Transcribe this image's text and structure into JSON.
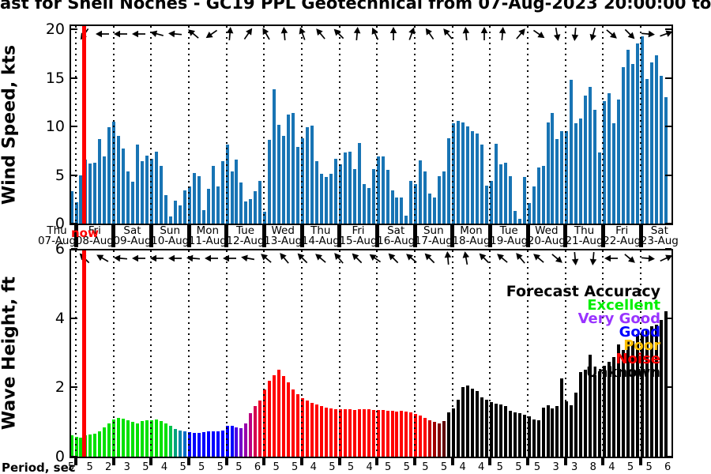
{
  "title": "ast for Shell Noches - GC19 PPL Geotechnical from 07-Aug-2023 20:00:00 to",
  "now_label": "now",
  "colors": {
    "wind_bar": "#1874B4",
    "now_line": "#FF0000",
    "axis": "#000000"
  },
  "legend": {
    "title": "Forecast Accuracy",
    "entries": [
      {
        "label": "Excellent",
        "color": "#00EE00"
      },
      {
        "label": "Very Good",
        "color": "#9933FF"
      },
      {
        "label": "Good",
        "color": "#0000FF"
      },
      {
        "label": "Poor",
        "color": "#FFC000"
      },
      {
        "label": "Noise",
        "color": "#FF0000"
      },
      {
        "label": "Unknown",
        "color": "#000000"
      }
    ]
  },
  "x_axis": {
    "days": [
      {
        "name": "Thu",
        "date": "07-Aug"
      },
      {
        "name": "Fri",
        "date": "08-Aug"
      },
      {
        "name": "Sat",
        "date": "09-Aug"
      },
      {
        "name": "Sun",
        "date": "10-Aug"
      },
      {
        "name": "Mon",
        "date": "11-Aug"
      },
      {
        "name": "Tue",
        "date": "12-Aug"
      },
      {
        "name": "Wed",
        "date": "13-Aug"
      },
      {
        "name": "Thu",
        "date": "14-Aug"
      },
      {
        "name": "Fri",
        "date": "15-Aug"
      },
      {
        "name": "Sat",
        "date": "16-Aug"
      },
      {
        "name": "Sun",
        "date": "17-Aug"
      },
      {
        "name": "Mon",
        "date": "18-Aug"
      },
      {
        "name": "Tue",
        "date": "19-Aug"
      },
      {
        "name": "Wed",
        "date": "20-Aug"
      },
      {
        "name": "Thu",
        "date": "21-Aug"
      },
      {
        "name": "Fri",
        "date": "22-Aug"
      },
      {
        "name": "Sat",
        "date": "23-Aug"
      }
    ]
  },
  "period_row": {
    "label": "Period, sec",
    "values": [
      "5",
      "5",
      "2",
      "3",
      "5",
      "4",
      "5",
      "5",
      "5",
      "5",
      "6",
      "5",
      "5",
      "4",
      "5",
      "5",
      "4",
      "5",
      "5",
      "5",
      "5",
      "4",
      "4",
      "5",
      "5",
      "5",
      "3",
      "3",
      "8",
      "4",
      "5",
      "5",
      "6"
    ]
  },
  "chart_data": [
    {
      "type": "bar",
      "name": "wind-speed",
      "ylabel": "Wind Speed, kts",
      "yticks": [
        "0",
        "5",
        "10",
        "15",
        "20"
      ],
      "ylim": [
        0,
        20.5
      ],
      "bar_color": "#1874B4",
      "values": [
        3.3,
        2.2,
        5.0,
        6.6,
        6.2,
        6.3,
        8.7,
        6.9,
        9.9,
        10.5,
        9.0,
        7.7,
        5.4,
        4.3,
        8.1,
        6.4,
        7.0,
        6.7,
        7.4,
        5.9,
        2.9,
        0.7,
        2.4,
        1.9,
        3.4,
        3.8,
        5.2,
        4.9,
        1.4,
        3.6,
        5.9,
        3.8,
        6.4,
        8.1,
        5.4,
        6.6,
        4.2,
        2.3,
        2.5,
        3.3,
        4.4,
        1.2,
        8.6,
        13.8,
        10.2,
        9.0,
        11.2,
        11.4,
        7.9,
        8.8,
        9.9,
        10.1,
        6.4,
        5.1,
        4.8,
        5.1,
        6.7,
        6.1,
        7.3,
        7.4,
        5.6,
        8.3,
        4.1,
        3.7,
        5.6,
        6.9,
        6.9,
        5.5,
        3.4,
        2.7,
        2.7,
        0.8,
        4.4,
        4.1,
        6.5,
        5.4,
        3.1,
        2.7,
        4.9,
        5.4,
        8.8,
        10.3,
        10.6,
        10.4,
        10.0,
        9.5,
        9.3,
        8.1,
        3.9,
        4.4,
        8.2,
        6.1,
        6.3,
        4.9,
        1.3,
        0.5,
        4.8,
        2.1,
        3.8,
        5.8,
        5.9,
        10.4,
        11.4,
        8.7,
        9.5,
        9.5,
        14.8,
        10.3,
        10.8,
        13.2,
        14.1,
        11.7,
        7.3,
        12.6,
        13.4,
        10.3,
        12.8,
        16.1,
        17.9,
        16.4,
        18.5,
        19.3,
        14.9,
        16.6,
        17.3,
        15.2,
        13.0
      ],
      "direction_arrows_deg": [
        235,
        180,
        180,
        180,
        165,
        175,
        140,
        215,
        85,
        55,
        120,
        95,
        110,
        130,
        135,
        85,
        115,
        90,
        70,
        125,
        130,
        95,
        90,
        85,
        50,
        325,
        280,
        265,
        255,
        320,
        315,
        355,
        20
      ]
    },
    {
      "type": "bar",
      "name": "wave-height",
      "ylabel": "Wave Height, ft",
      "yticks": [
        "0",
        "2",
        "4",
        "6"
      ],
      "ylim": [
        0,
        6
      ],
      "values": [
        0.62,
        0.58,
        0.56,
        0.62,
        0.65,
        0.66,
        0.72,
        0.85,
        0.95,
        1.08,
        1.12,
        1.1,
        1.05,
        1.0,
        0.96,
        1.02,
        1.05,
        1.06,
        1.08,
        1.02,
        0.95,
        0.88,
        0.8,
        0.76,
        0.72,
        0.7,
        0.68,
        0.68,
        0.71,
        0.73,
        0.72,
        0.73,
        0.75,
        0.88,
        0.9,
        0.85,
        0.82,
        0.95,
        1.25,
        1.45,
        1.62,
        1.95,
        2.2,
        2.35,
        2.5,
        2.32,
        2.15,
        1.95,
        1.8,
        1.7,
        1.62,
        1.56,
        1.5,
        1.46,
        1.42,
        1.4,
        1.38,
        1.36,
        1.38,
        1.36,
        1.35,
        1.36,
        1.38,
        1.37,
        1.35,
        1.34,
        1.35,
        1.33,
        1.32,
        1.3,
        1.32,
        1.3,
        1.28,
        1.24,
        1.18,
        1.12,
        1.05,
        1.0,
        0.96,
        1.02,
        1.28,
        1.4,
        1.65,
        2.0,
        2.06,
        1.97,
        1.9,
        1.72,
        1.64,
        1.57,
        1.54,
        1.51,
        1.46,
        1.32,
        1.29,
        1.26,
        1.21,
        1.16,
        1.08,
        1.04,
        1.42,
        1.49,
        1.4,
        1.46,
        2.25,
        1.59,
        1.49,
        1.86,
        2.45,
        2.5,
        2.95,
        2.35,
        2.47,
        2.62,
        2.73,
        2.88,
        3.23,
        3.08,
        3.38,
        3.34,
        3.53,
        3.61,
        3.68,
        3.76,
        3.8,
        3.95,
        4.2
      ],
      "color_segments": [
        {
          "count": 21,
          "color": "#00E100",
          "accuracy": "Excellent"
        },
        {
          "count": 1,
          "color": "#00C24E",
          "accuracy": "transition"
        },
        {
          "count": 1,
          "color": "#00A37C",
          "accuracy": "transition"
        },
        {
          "count": 1,
          "color": "#0086A6",
          "accuracy": "transition"
        },
        {
          "count": 1,
          "color": "#006BC8",
          "accuracy": "transition"
        },
        {
          "count": 10,
          "color": "#0000FF",
          "accuracy": "Good"
        },
        {
          "count": 1,
          "color": "#4B00E6",
          "accuracy": "transition"
        },
        {
          "count": 1,
          "color": "#7300C8",
          "accuracy": "Very Good"
        },
        {
          "count": 1,
          "color": "#9900AA",
          "accuracy": "transition"
        },
        {
          "count": 1,
          "color": "#BB0080",
          "accuracy": "transition"
        },
        {
          "count": 1,
          "color": "#D6004E",
          "accuracy": "transition"
        },
        {
          "count": 1,
          "color": "#EE0028",
          "accuracy": "transition"
        },
        {
          "count": 35,
          "color": "#FF0000",
          "accuracy": "Noise"
        },
        {
          "count": 1,
          "color": "#C30000",
          "accuracy": "transition"
        },
        {
          "count": 1,
          "color": "#A00000",
          "accuracy": "transition"
        },
        {
          "count": 1,
          "color": "#800000",
          "accuracy": "transition"
        },
        {
          "count": 1,
          "color": "#600000",
          "accuracy": "transition"
        },
        {
          "count": 47,
          "color": "#000000",
          "accuracy": "Unknown"
        }
      ],
      "direction_arrows_deg": [
        135,
        150,
        175,
        180,
        180,
        180,
        175,
        180,
        180,
        170,
        140,
        130,
        135,
        140,
        130,
        135,
        145,
        135,
        140,
        135,
        95,
        100,
        135,
        140,
        130,
        140,
        320,
        275,
        265,
        180,
        320,
        355,
        25
      ]
    }
  ]
}
